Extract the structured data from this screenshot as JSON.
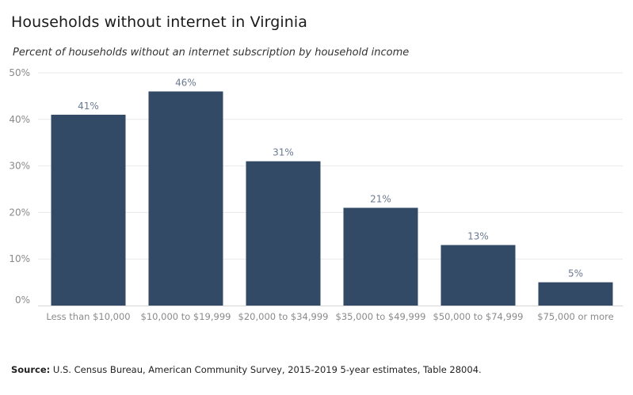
{
  "title": "Households without internet in Virginia",
  "subtitle": "Percent of households without an internet subscription by household income",
  "source": {
    "label": "Source:",
    "text": " U.S. Census Bureau, American Community Survey, 2015-2019 5-year estimates, Table 28004."
  },
  "colors": {
    "bar": "#334a66",
    "grid": "#e8e8e8",
    "tick": "#8a8a8a",
    "label": "#6b7a90"
  },
  "chart_data": {
    "type": "bar",
    "categories": [
      "Less than $10,000",
      "$10,000 to $19,999",
      "$20,000 to $34,999",
      "$35,000 to $49,999",
      "$50,000 to $74,999",
      "$75,000 or more"
    ],
    "values": [
      41,
      46,
      31,
      21,
      13,
      5
    ],
    "data_labels": [
      "41%",
      "46%",
      "31%",
      "21%",
      "13%",
      "5%"
    ],
    "yticks": [
      0,
      10,
      20,
      30,
      40,
      50
    ],
    "ytick_labels": [
      "0%",
      "10%",
      "20%",
      "30%",
      "40%",
      "50%"
    ],
    "ylim": [
      0,
      50
    ],
    "grid": true,
    "title": "Households without internet in Virginia",
    "xlabel": "",
    "ylabel": ""
  }
}
